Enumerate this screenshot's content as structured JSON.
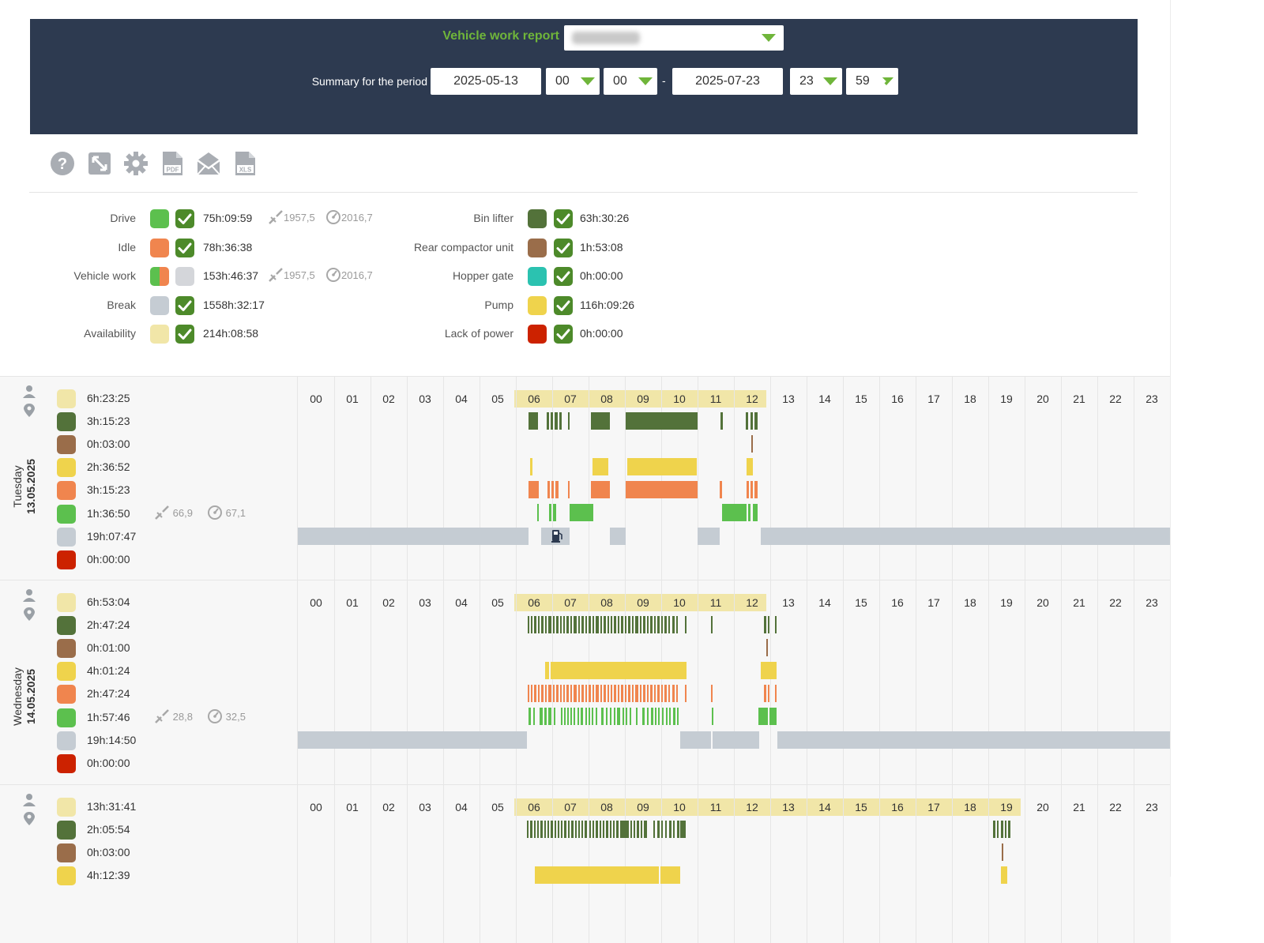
{
  "header": {
    "report_label": "Vehicle work report",
    "period_label": "Summary for the period",
    "date_from": "2025-05-13",
    "hour_from": "00",
    "minute_from": "00",
    "separator": "-",
    "date_to": "2025-07-23",
    "hour_to": "23",
    "minute_to": "59"
  },
  "toolbar": [
    "help-icon",
    "expand-icon",
    "gear-icon",
    "pdf-icon",
    "email-icon",
    "xls-icon"
  ],
  "legend": {
    "left": [
      {
        "label": "Drive",
        "color": "#5cc04e",
        "checked": true,
        "value": "75h:09:59",
        "distance": "1957,5",
        "odometer": "2016,7"
      },
      {
        "label": "Idle",
        "color": "#f0854e",
        "checked": true,
        "value": "78h:36:38"
      },
      {
        "label": "Vehicle work",
        "color": "split",
        "checked": false,
        "value": "153h:46:37",
        "distance": "1957,5",
        "odometer": "2016,7"
      },
      {
        "label": "Break",
        "color": "#c5ccd3",
        "checked": true,
        "value": "1558h:32:17"
      },
      {
        "label": "Availability",
        "color": "#f1e6a8",
        "checked": true,
        "value": "214h:08:58"
      }
    ],
    "right": [
      {
        "label": "Bin lifter",
        "color": "#53723a",
        "checked": true,
        "value": "63h:30:26"
      },
      {
        "label": "Rear compactor unit",
        "color": "#9a6d4a",
        "checked": true,
        "value": "1h:53:08"
      },
      {
        "label": "Hopper gate",
        "color": "#2bc2b0",
        "checked": true,
        "value": "0h:00:00"
      },
      {
        "label": "Pump",
        "color": "#efd34c",
        "checked": true,
        "value": "116h:09:26"
      },
      {
        "label": "Lack of power",
        "color": "#cc2200",
        "checked": true,
        "value": "0h:00:00"
      }
    ]
  },
  "hours": [
    "00",
    "01",
    "02",
    "03",
    "04",
    "05",
    "06",
    "07",
    "08",
    "09",
    "10",
    "11",
    "12",
    "13",
    "14",
    "15",
    "16",
    "17",
    "18",
    "19",
    "20",
    "21",
    "22",
    "23"
  ],
  "days": [
    {
      "weekday": "Tuesday",
      "date": "13.05.2025",
      "highlight_hours": [
        6,
        12
      ],
      "rows": [
        {
          "color": "#f1e6a8",
          "value": "6h:23:25"
        },
        {
          "color": "#53723a",
          "value": "3h:15:23"
        },
        {
          "color": "#9a6d4a",
          "value": "0h:03:00"
        },
        {
          "color": "#efd34c",
          "value": "2h:36:52"
        },
        {
          "color": "#f0854e",
          "value": "3h:15:23"
        },
        {
          "color": "#5cc04e",
          "value": "1h:36:50",
          "distance": "66,9",
          "odometer": "67,1"
        },
        {
          "color": "#c5ccd3",
          "value": "19h:07:47"
        },
        {
          "color": "#cc2200",
          "value": "0h:00:00"
        }
      ]
    },
    {
      "weekday": "Wednesday",
      "date": "14.05.2025",
      "highlight_hours": [
        6,
        12
      ],
      "rows": [
        {
          "color": "#f1e6a8",
          "value": "6h:53:04"
        },
        {
          "color": "#53723a",
          "value": "2h:47:24"
        },
        {
          "color": "#9a6d4a",
          "value": "0h:01:00"
        },
        {
          "color": "#efd34c",
          "value": "4h:01:24"
        },
        {
          "color": "#f0854e",
          "value": "2h:47:24"
        },
        {
          "color": "#5cc04e",
          "value": "1h:57:46",
          "distance": "28,8",
          "odometer": "32,5"
        },
        {
          "color": "#c5ccd3",
          "value": "19h:14:50"
        },
        {
          "color": "#cc2200",
          "value": "0h:00:00"
        }
      ]
    },
    {
      "weekday": "",
      "date": "",
      "highlight_hours": [
        6,
        19
      ],
      "rows": [
        {
          "color": "#f1e6a8",
          "value": "13h:31:41"
        },
        {
          "color": "#53723a",
          "value": "2h:05:54"
        },
        {
          "color": "#9a6d4a",
          "value": "0h:03:00"
        },
        {
          "color": "#efd34c",
          "value": "4h:12:39"
        }
      ]
    }
  ]
}
